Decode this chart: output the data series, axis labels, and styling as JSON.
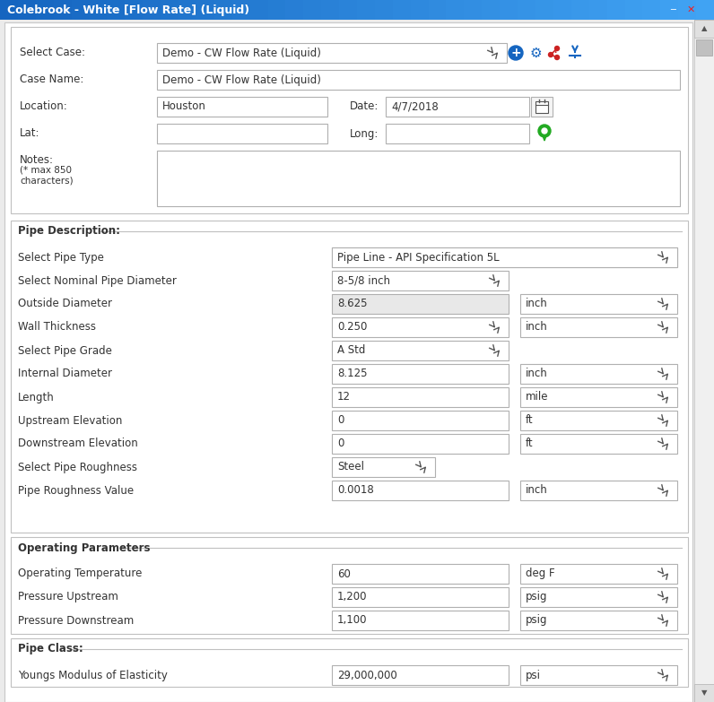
{
  "title": "Colebrook - White [Flow Rate] (Liquid)",
  "bg_color": "#e8e8e8",
  "title_text_color": "#ffffff",
  "text_color": "#333333",
  "label_color": "#333333",
  "select_case_label": "Select Case:",
  "select_case_value": "Demo - CW Flow Rate (Liquid)",
  "case_name_label": "Case Name:",
  "case_name_value": "Demo - CW Flow Rate (Liquid)",
  "location_label": "Location:",
  "location_value": "Houston",
  "date_label": "Date:",
  "date_value": "4/7/2018",
  "lat_label": "Lat:",
  "long_label": "Long:",
  "pipe_desc_label": "Pipe Description:",
  "pipe_type_value": "Pipe Line - API Specification 5L",
  "pipe_diameter_value": "8-5/8 inch",
  "outside_dia_value": "8.625",
  "outside_dia_unit": "inch",
  "wall_thick_value": "0.250",
  "wall_thick_unit": "inch",
  "pipe_grade_value": "A Std",
  "internal_dia_value": "8.125",
  "internal_dia_unit": "inch",
  "length_value": "12",
  "length_unit": "mile",
  "upstream_elev_value": "0",
  "upstream_elev_unit": "ft",
  "downstream_elev_value": "0",
  "downstream_elev_unit": "ft",
  "pipe_roughness_value": "Steel",
  "pipe_roughness_value2": "0.0018",
  "pipe_roughness_unit": "inch",
  "op_params_label": "Operating Parameters",
  "op_temp_label": "Operating Temperature",
  "op_temp_value": "60",
  "op_temp_unit": "deg F",
  "pressure_up_label": "Pressure Upstream",
  "pressure_up_value": "1,200",
  "pressure_up_unit": "psig",
  "pressure_down_label": "Pressure Downstream",
  "pressure_down_value": "1,100",
  "pressure_down_unit": "psig",
  "pipe_class_label": "Pipe Class:",
  "youngs_label": "Youngs Modulus of Elasticity",
  "youngs_value": "29,000,000",
  "youngs_unit": "psi"
}
